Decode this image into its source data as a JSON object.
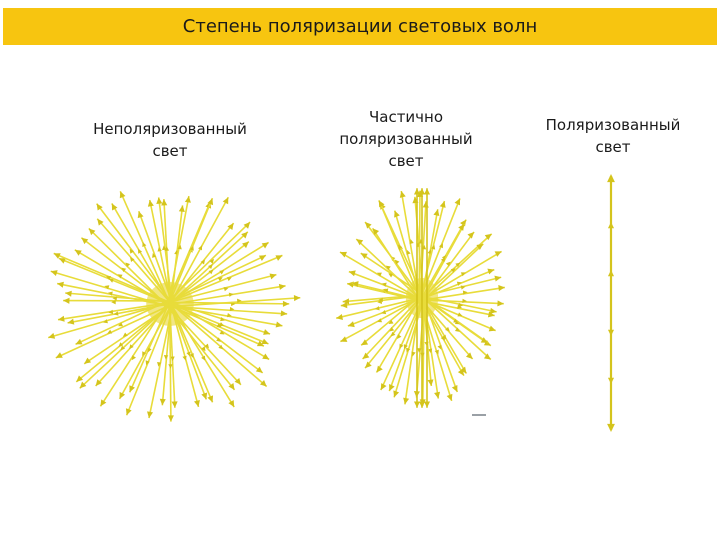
{
  "title": "Степень поляризации световых волн",
  "panels": [
    {
      "label": "Неполяризованный\nсвет"
    },
    {
      "label": "Частично\nполяризованный\nсвет"
    },
    {
      "label": "Поляризованный\nсвет"
    }
  ],
  "colors": {
    "title_bar": "#f7c510",
    "arrow": "#e8dc3a",
    "arrow_stroke": "#d4c41c",
    "center_glow": "#e6d21e"
  },
  "icons": [
    "double-headed-arrow-icon"
  ]
}
